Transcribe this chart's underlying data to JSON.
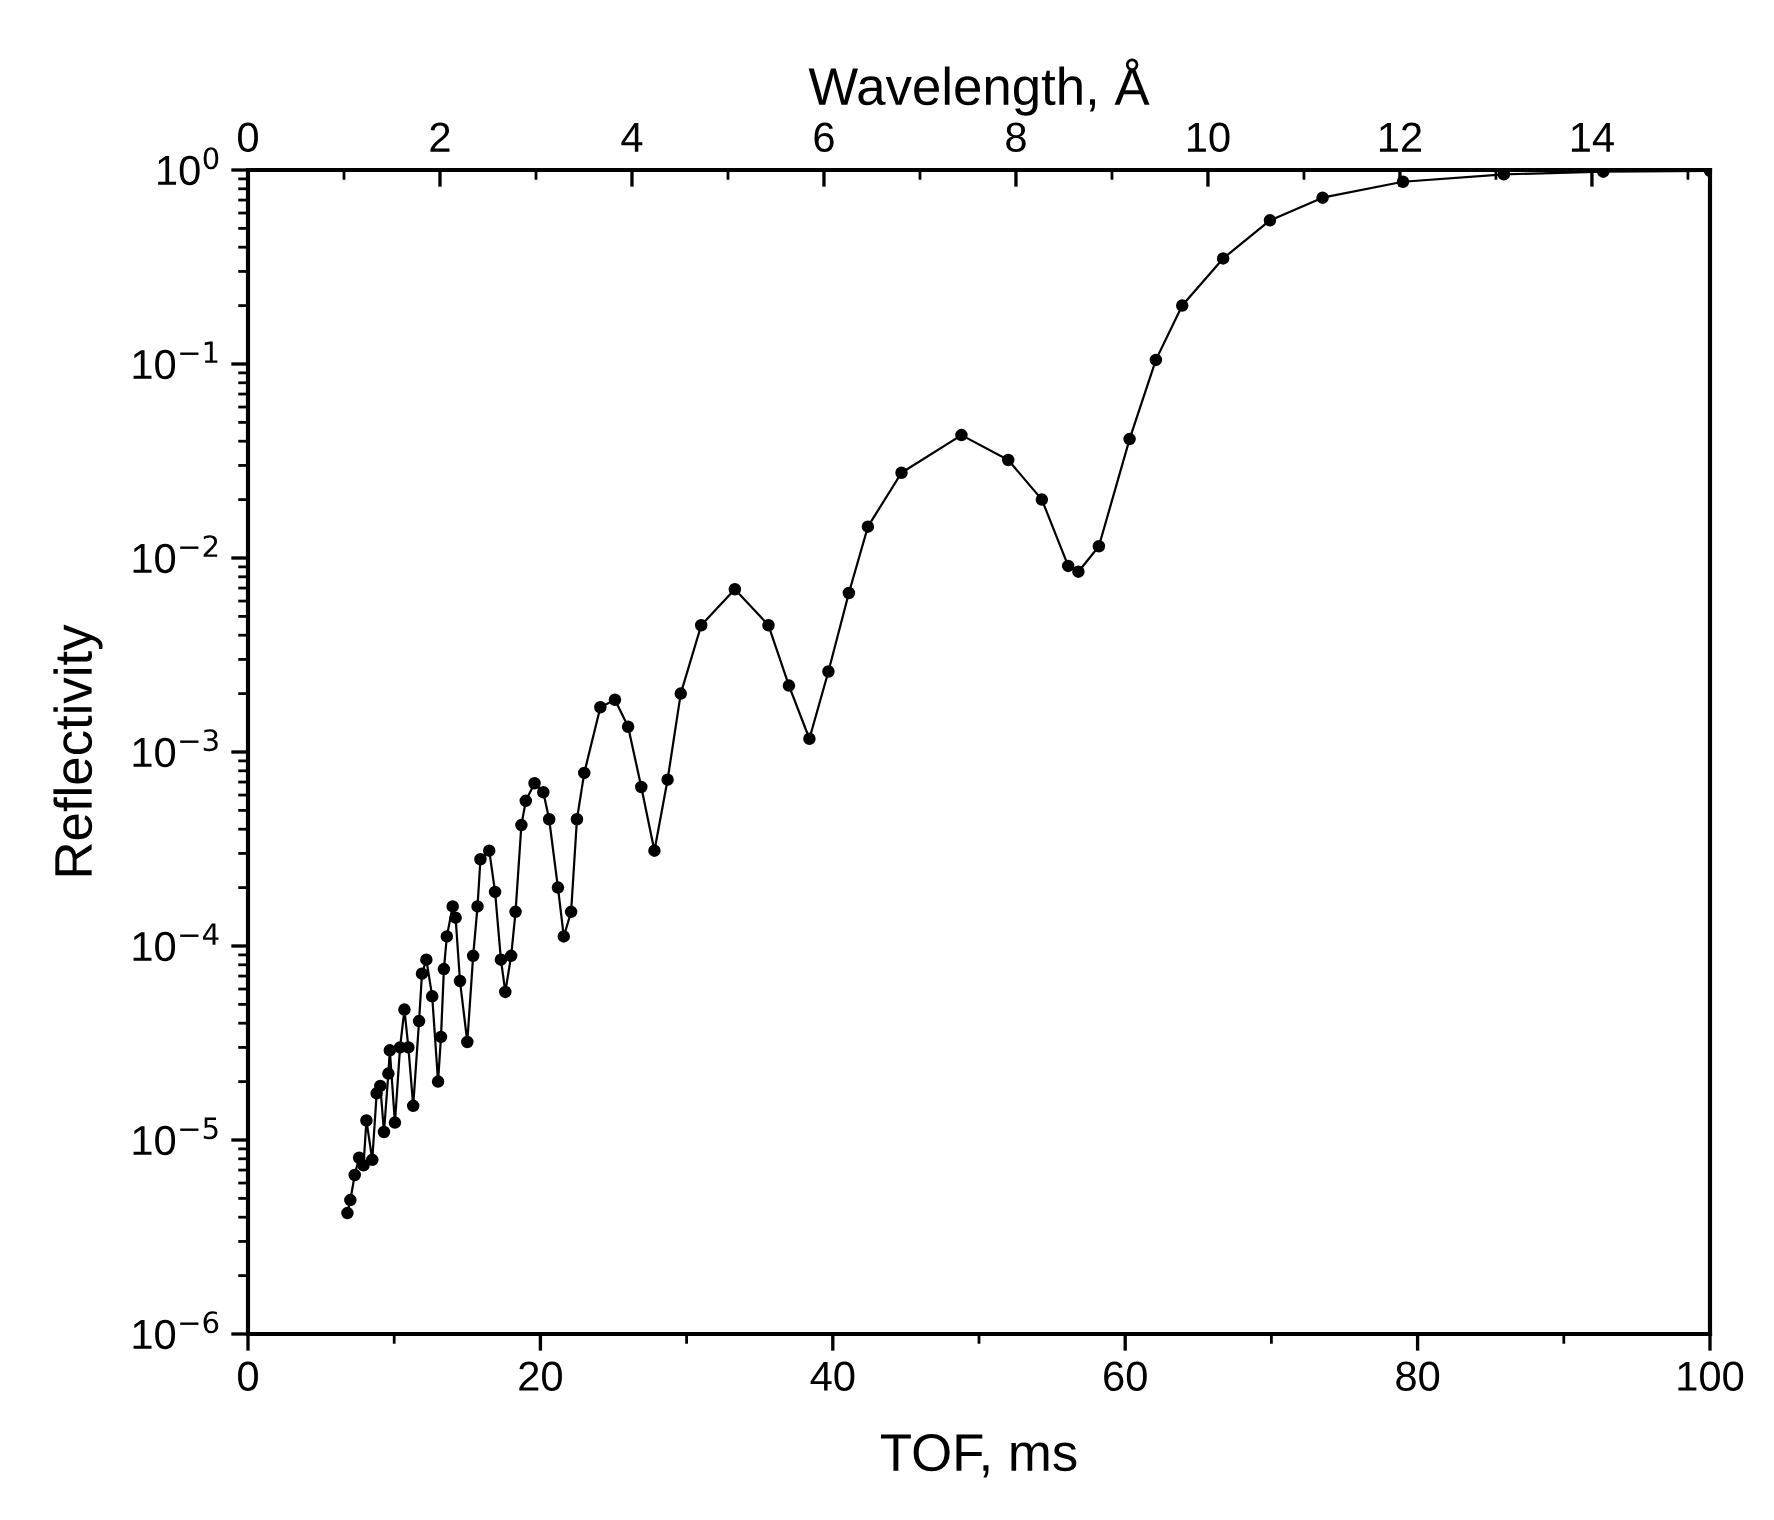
{
  "chart_data": {
    "type": "line",
    "xlabel": "TOF, ms",
    "ylabel": "Reflectivity",
    "x2label": "Wavelength, Å",
    "marker": "circle",
    "line_style": "solid",
    "log": "y",
    "grid": false,
    "legend": false,
    "xlim": [
      0,
      100
    ],
    "xticks": [
      0,
      20,
      40,
      60,
      80,
      100
    ],
    "ylim": [
      1e-06,
      1
    ],
    "yticks": [
      {
        "value": 1e-06,
        "label": "10$^{−6}$"
      },
      {
        "value": 1e-05,
        "label": "10$^{−5}$"
      },
      {
        "value": 0.0001,
        "label": "10$^{−4}$"
      },
      {
        "value": 0.001,
        "label": "10$^{−3}$"
      },
      {
        "value": 0.01,
        "label": "10$^{−2}$"
      },
      {
        "value": 0.1,
        "label": "10$^{−1}$"
      },
      {
        "value": 1,
        "label": "10$^{0}$"
      }
    ],
    "x2lim": [
      0,
      15.23
    ],
    "x2ticks": [
      0,
      2,
      4,
      6,
      8,
      10,
      12,
      14
    ],
    "series": [
      {
        "color": "#000000",
        "x": [
          6.8,
          7.0,
          7.3,
          7.6,
          7.9,
          8.1,
          8.5,
          8.8,
          9.05,
          9.3,
          9.6,
          9.7,
          10.05,
          10.4,
          10.7,
          10.97,
          11.3,
          11.7,
          11.9,
          12.2,
          12.6,
          13.0,
          13.2,
          13.4,
          13.6,
          14.0,
          14.2,
          14.5,
          15.0,
          15.4,
          15.7,
          15.9,
          16.5,
          16.9,
          17.3,
          17.6,
          18.0,
          18.3,
          18.7,
          19.0,
          19.6,
          20.2,
          20.6,
          21.2,
          21.6,
          22.1,
          22.5,
          23.0,
          24.1,
          25.1,
          26.0,
          26.9,
          27.8,
          28.7,
          29.6,
          31.0,
          33.3,
          35.6,
          37.0,
          38.4,
          39.7,
          41.1,
          42.4,
          44.7,
          48.8,
          52.0,
          54.3,
          56.1,
          56.8,
          58.2,
          60.3,
          62.1,
          63.9,
          66.7,
          69.9,
          73.5,
          79.0,
          85.9,
          92.7,
          100
        ],
        "values": [
          4.2e-06,
          4.9e-06,
          6.6e-06,
          8.1e-06,
          7.4e-06,
          1.26e-05,
          7.9e-06,
          1.74e-05,
          1.9e-05,
          1.1e-05,
          2.2e-05,
          2.9e-05,
          1.23e-05,
          3e-05,
          4.7e-05,
          3e-05,
          1.5e-05,
          4.1e-05,
          7.2e-05,
          8.5e-05,
          5.5e-05,
          2e-05,
          3.4e-05,
          7.6e-05,
          0.000112,
          0.00016,
          0.00014,
          6.6e-05,
          3.2e-05,
          8.9e-05,
          0.00016,
          0.00028,
          0.00031,
          0.00019,
          8.5e-05,
          5.8e-05,
          8.9e-05,
          0.00015,
          0.00042,
          0.00056,
          0.00069,
          0.00062,
          0.00045,
          0.0002,
          0.000112,
          0.00015,
          0.00045,
          0.00078,
          0.0017,
          0.00186,
          0.00135,
          0.00066,
          0.00031,
          0.00072,
          0.002,
          0.0045,
          0.0069,
          0.0045,
          0.0022,
          0.00117,
          0.0026,
          0.0066,
          0.0145,
          0.0275,
          0.043,
          0.032,
          0.02,
          0.0091,
          0.0085,
          0.0115,
          0.041,
          0.105,
          0.2,
          0.35,
          0.55,
          0.72,
          0.87,
          0.95,
          0.98,
          0.99
        ]
      }
    ]
  }
}
